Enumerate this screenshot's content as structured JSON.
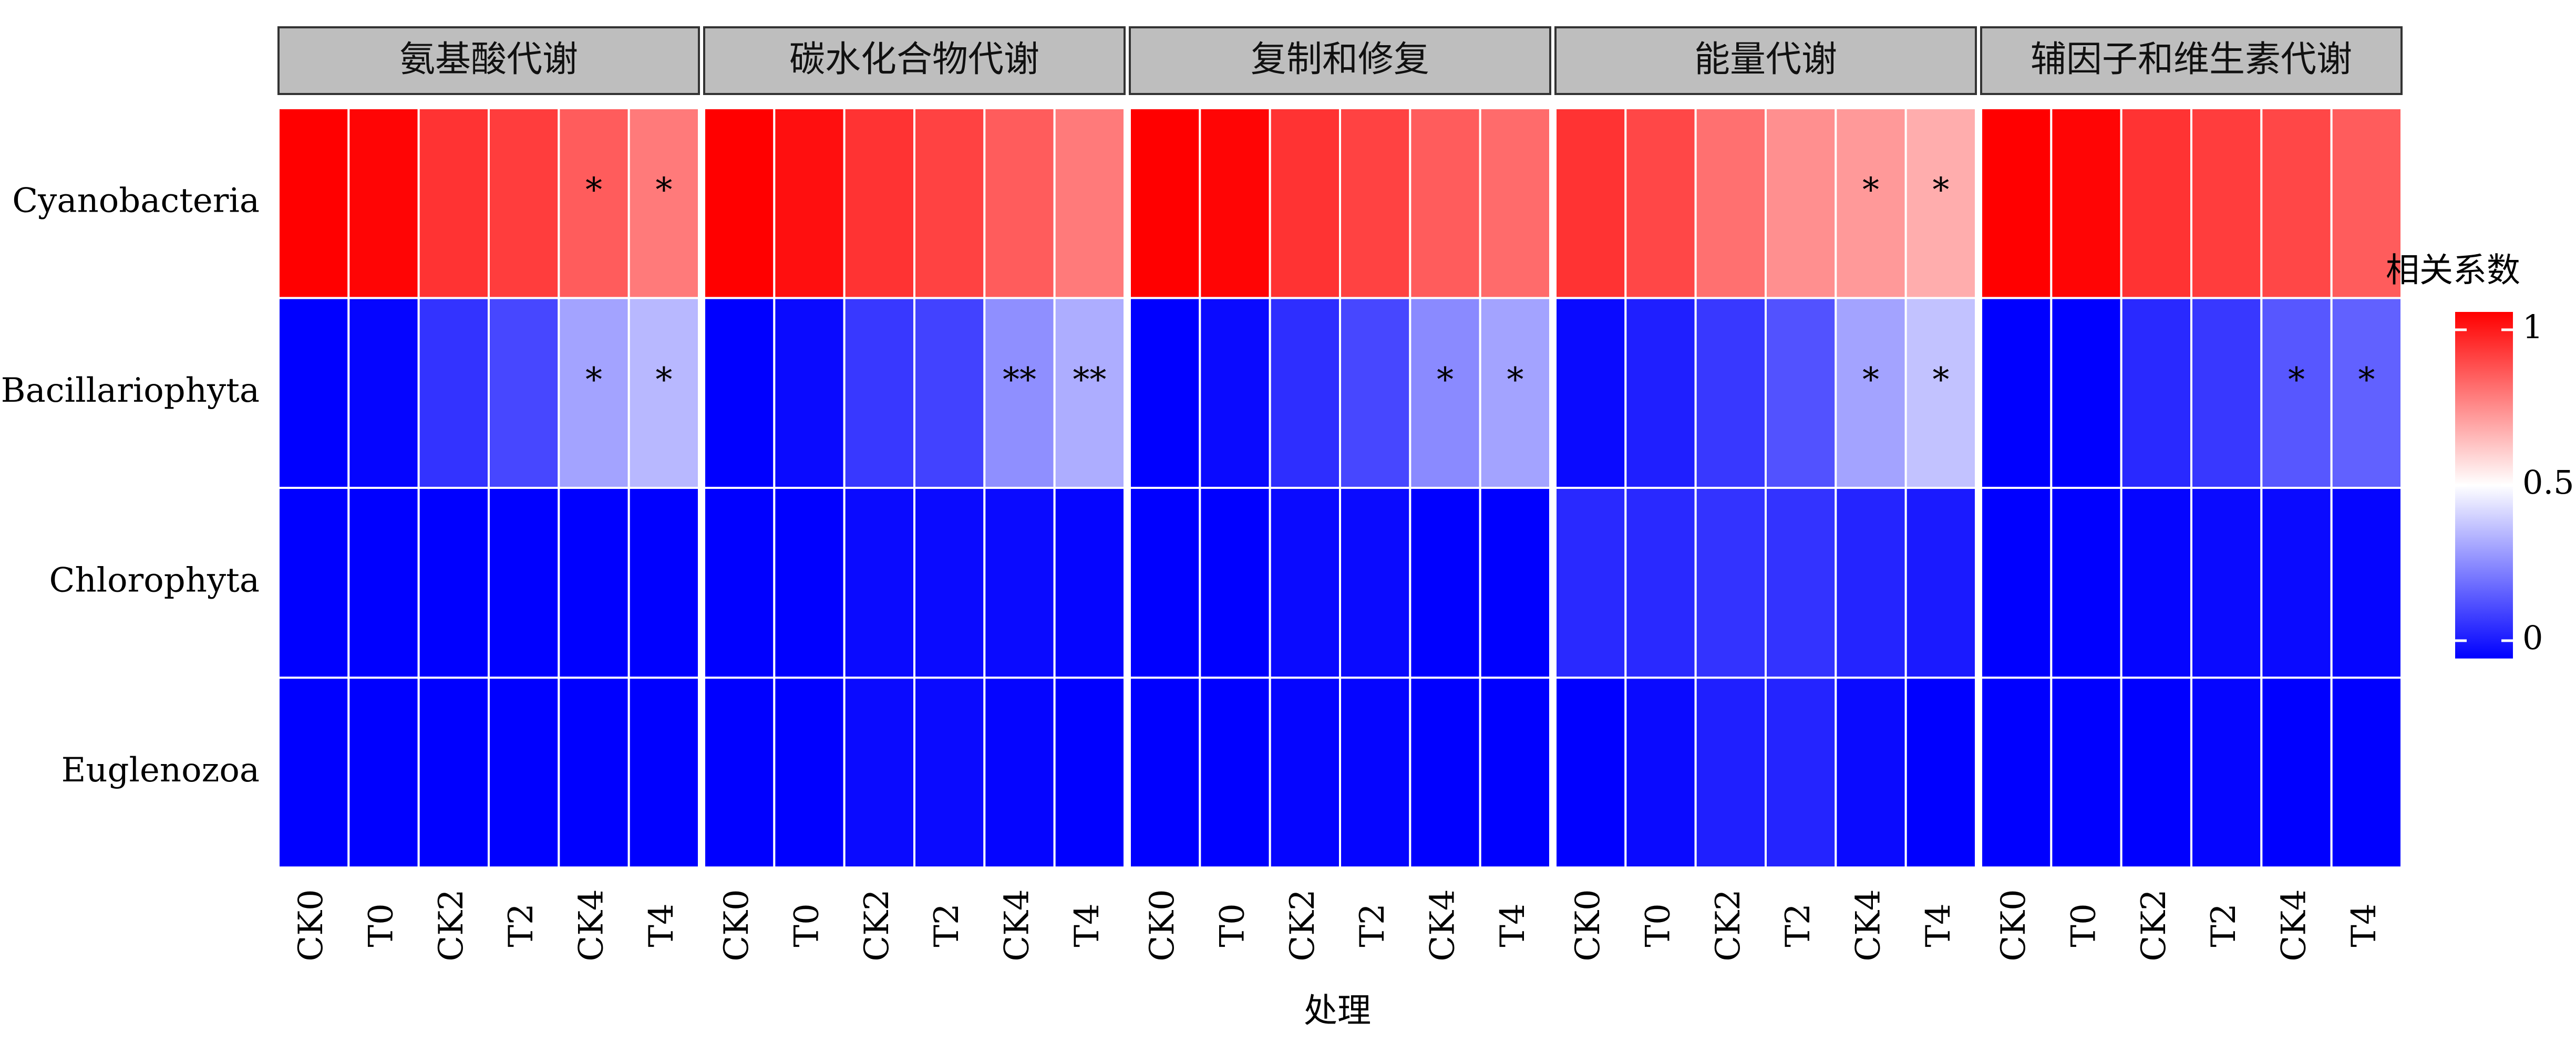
{
  "chart_data": {
    "type": "heatmap",
    "title": "",
    "xlabel": "处理",
    "ylabel": "",
    "panels": [
      {
        "name": "氨基酸代谢",
        "x": [
          "CK0",
          "T0",
          "CK2",
          "T2",
          "CK4",
          "T4"
        ],
        "y": [
          "Cyanobacteria",
          "Bacillariophyta",
          "Chlorophyta",
          "Euglenozoa"
        ],
        "values": [
          [
            1.0,
            0.99,
            0.9,
            0.88,
            0.82,
            0.76
          ],
          [
            0.0,
            0.01,
            0.1,
            0.14,
            0.32,
            0.36
          ],
          [
            0.0,
            0.0,
            0.0,
            0.0,
            0.0,
            0.0
          ],
          [
            0.0,
            0.0,
            0.0,
            0.0,
            0.0,
            0.0
          ]
        ],
        "significance": [
          [
            "",
            "",
            "",
            "",
            "*",
            "*"
          ],
          [
            "",
            "",
            "",
            "",
            "*",
            "*"
          ],
          [
            "",
            "",
            "",
            "",
            "",
            ""
          ],
          [
            "",
            "",
            "",
            "",
            "",
            ""
          ]
        ]
      },
      {
        "name": "碳水化合物代谢",
        "x": [
          "CK0",
          "T0",
          "CK2",
          "T2",
          "CK4",
          "T4"
        ],
        "y": [
          "Cyanobacteria",
          "Bacillariophyta",
          "Chlorophyta",
          "Euglenozoa"
        ],
        "values": [
          [
            1.0,
            0.97,
            0.9,
            0.87,
            0.82,
            0.76
          ],
          [
            0.0,
            0.02,
            0.11,
            0.13,
            0.28,
            0.34
          ],
          [
            0.0,
            0.0,
            0.02,
            0.02,
            0.02,
            0.01
          ],
          [
            0.0,
            0.0,
            0.02,
            0.02,
            0.01,
            0.0
          ]
        ],
        "significance": [
          [
            "",
            "",
            "",
            "",
            "",
            ""
          ],
          [
            "",
            "",
            "",
            "",
            "**",
            "**"
          ],
          [
            "",
            "",
            "",
            "",
            "",
            ""
          ],
          [
            "",
            "",
            "",
            "",
            "",
            ""
          ]
        ]
      },
      {
        "name": "复制和修复",
        "x": [
          "CK0",
          "T0",
          "CK2",
          "T2",
          "CK4",
          "T4"
        ],
        "y": [
          "Cyanobacteria",
          "Bacillariophyta",
          "Chlorophyta",
          "Euglenozoa"
        ],
        "values": [
          [
            1.0,
            0.99,
            0.9,
            0.87,
            0.82,
            0.79
          ],
          [
            0.0,
            0.02,
            0.09,
            0.14,
            0.27,
            0.32
          ],
          [
            0.0,
            0.0,
            0.02,
            0.02,
            0.0,
            0.0
          ],
          [
            0.0,
            0.0,
            0.01,
            0.01,
            0.0,
            0.0
          ]
        ],
        "significance": [
          [
            "",
            "",
            "",
            "",
            "",
            ""
          ],
          [
            "",
            "",
            "",
            "",
            "*",
            "*"
          ],
          [
            "",
            "",
            "",
            "",
            "",
            ""
          ],
          [
            "",
            "",
            "",
            "",
            "",
            ""
          ]
        ]
      },
      {
        "name": "能量代谢",
        "x": [
          "CK0",
          "T0",
          "CK2",
          "T2",
          "CK4",
          "T4"
        ],
        "y": [
          "Cyanobacteria",
          "Bacillariophyta",
          "Chlorophyta",
          "Euglenozoa"
        ],
        "values": [
          [
            0.9,
            0.86,
            0.78,
            0.72,
            0.7,
            0.66
          ],
          [
            0.02,
            0.06,
            0.11,
            0.16,
            0.32,
            0.38
          ],
          [
            0.08,
            0.08,
            0.1,
            0.1,
            0.07,
            0.05
          ],
          [
            0.0,
            0.02,
            0.06,
            0.07,
            0.02,
            0.0
          ]
        ],
        "significance": [
          [
            "",
            "",
            "",
            "",
            "*",
            "*"
          ],
          [
            "",
            "",
            "",
            "",
            "*",
            "*"
          ],
          [
            "",
            "",
            "",
            "",
            "",
            ""
          ],
          [
            "",
            "",
            "",
            "",
            "",
            ""
          ]
        ]
      },
      {
        "name": "辅因子和维生素代谢",
        "x": [
          "CK0",
          "T0",
          "CK2",
          "T2",
          "CK4",
          "T4"
        ],
        "y": [
          "Cyanobacteria",
          "Bacillariophyta",
          "Chlorophyta",
          "Euglenozoa"
        ],
        "values": [
          [
            1.0,
            0.99,
            0.9,
            0.88,
            0.86,
            0.82
          ],
          [
            0.0,
            0.0,
            0.08,
            0.11,
            0.17,
            0.19
          ],
          [
            0.0,
            0.0,
            0.01,
            0.02,
            0.02,
            0.01
          ],
          [
            0.0,
            0.0,
            0.0,
            0.01,
            0.0,
            0.0
          ]
        ],
        "significance": [
          [
            "",
            "",
            "",
            "",
            "",
            ""
          ],
          [
            "",
            "",
            "",
            "",
            "*",
            "*"
          ],
          [
            "",
            "",
            "",
            "",
            "",
            ""
          ],
          [
            "",
            "",
            "",
            "",
            "",
            ""
          ]
        ]
      }
    ],
    "legend": {
      "title": "相关系数",
      "placement": "right",
      "ticks": [
        1,
        0.5,
        0
      ],
      "tick_labels": [
        "1",
        "0.5",
        "0"
      ],
      "range": [
        0,
        1
      ]
    },
    "colors": {
      "low": "#0000ff",
      "mid": "#ffffff",
      "high": "#ff0000",
      "strip_fill": "#bebebe",
      "strip_border": "#333333"
    },
    "grid": false
  }
}
